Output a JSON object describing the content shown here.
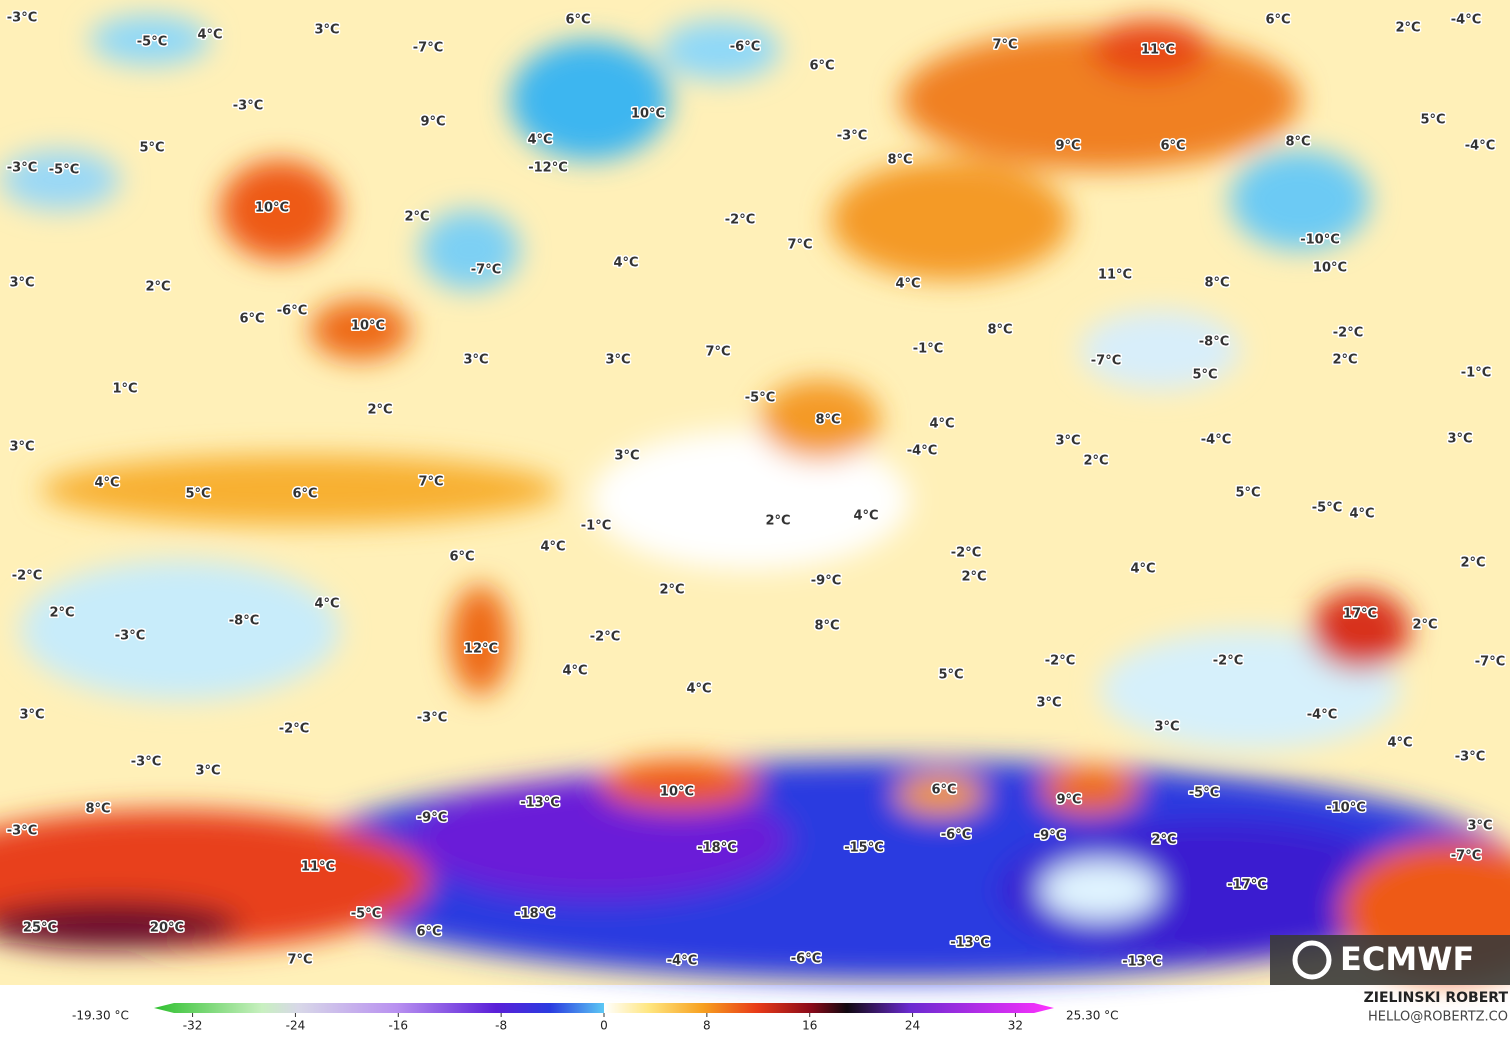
{
  "map": {
    "labels": [
      "-3°C",
      "-5°C",
      "4°C",
      "3°C",
      "-7°C",
      "6°C",
      "-6°C",
      "6°C",
      "7°C",
      "11°C",
      "6°C",
      "2°C",
      "-4°C",
      "-3°C",
      "9°C",
      "10°C",
      "4°C",
      "-12°C",
      "-3°C",
      "8°C",
      "9°C",
      "6°C",
      "8°C",
      "5°C",
      "-4°C",
      "-3°C",
      "5°C",
      "-5°C",
      "10°C",
      "2°C",
      "-2°C",
      "-10°C",
      "10°C",
      "3°C",
      "2°C",
      "-6°C",
      "6°C",
      "10°C",
      "-7°C",
      "4°C",
      "7°C",
      "4°C",
      "11°C",
      "8°C",
      "-2°C",
      "2°C",
      "3°C",
      "3°C",
      "7°C",
      "-1°C",
      "8°C",
      "-7°C",
      "-8°C",
      "5°C",
      "-1°C",
      "1°C",
      "-5°C",
      "8°C",
      "2°C",
      "3°C",
      "3°C",
      "4°C",
      "-4°C",
      "3°C",
      "2°C",
      "-4°C",
      "3°C",
      "4°C",
      "5°C",
      "6°C",
      "7°C",
      "-1°C",
      "2°C",
      "4°C",
      "4°C",
      "5°C",
      "-5°C",
      "4°C",
      "6°C",
      "-2°C",
      "2°C",
      "4°C",
      "2°C",
      "-2°C",
      "-9°C",
      "2°C",
      "2°C",
      "4°C",
      "-3°C",
      "-8°C",
      "8°C",
      "-2°C",
      "17°C",
      "2°C",
      "12°C",
      "4°C",
      "-2°C",
      "-2°C",
      "-7°C",
      "5°C",
      "4°C",
      "3°C",
      "-4°C",
      "3°C",
      "-3°C",
      "-2°C",
      "3°C",
      "4°C",
      "-3°C",
      "3°C",
      "-3°C",
      "10°C",
      "6°C",
      "9°C",
      "-5°C",
      "8°C",
      "-9°C",
      "-13°C",
      "-10°C",
      "3°C",
      "-3°C",
      "-18°C",
      "-15°C",
      "-6°C",
      "-9°C",
      "2°C",
      "-7°C",
      "11°C",
      "-17°C",
      "25°C",
      "20°C",
      "-5°C",
      "-18°C",
      "6°C",
      "-13°C",
      "7°C",
      "-4°C",
      "-6°C",
      "-13°C"
    ],
    "colorbar": {
      "min_label": "-19.30 °C",
      "max_label": "25.30 °C",
      "lim": [
        -35,
        35
      ],
      "ticks": [
        -32,
        -24,
        -16,
        -8,
        0,
        8,
        16,
        24,
        32
      ]
    }
  },
  "credit": {
    "author": "ZIELINSKI ROBERT",
    "contact": "HELLO@ROBERTZ.CO"
  },
  "logo": "ECMWF"
}
